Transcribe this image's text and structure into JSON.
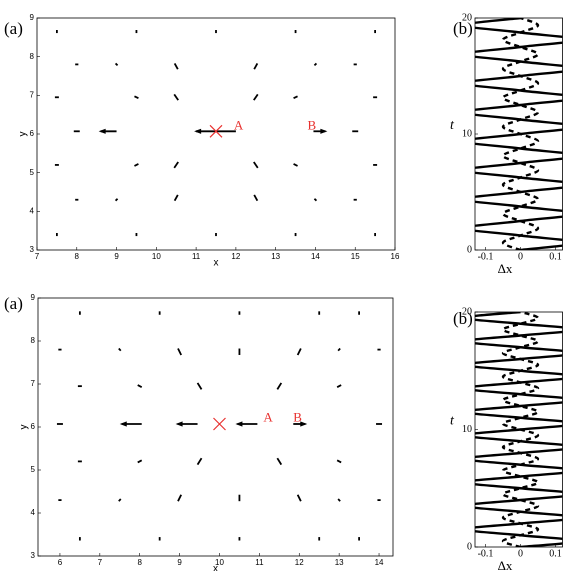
{
  "chart_data": [
    {
      "type": "quiver",
      "label": "(a)",
      "xlabel": "x",
      "ylabel": "y",
      "xlim": [
        7,
        16
      ],
      "ylim": [
        3,
        9
      ],
      "xticks": [
        7,
        8,
        9,
        10,
        11,
        12,
        13,
        14,
        15,
        16
      ],
      "yticks": [
        3,
        4,
        5,
        6,
        7,
        8,
        9
      ],
      "color": "#000000",
      "points": [
        {
          "x": 7.5,
          "y": 8.65,
          "u": 0,
          "v": -0.08
        },
        {
          "x": 9.5,
          "y": 8.65,
          "u": 0,
          "v": -0.08
        },
        {
          "x": 11.5,
          "y": 8.65,
          "u": 0,
          "v": -0.08
        },
        {
          "x": 13.5,
          "y": 8.65,
          "u": 0,
          "v": -0.08
        },
        {
          "x": 15.5,
          "y": 8.65,
          "u": 0,
          "v": -0.08
        },
        {
          "x": 8,
          "y": 7.8,
          "u": 0.08,
          "v": 0
        },
        {
          "x": 9,
          "y": 7.8,
          "u": 0.05,
          "v": -0.05
        },
        {
          "x": 10.5,
          "y": 7.75,
          "u": 0.08,
          "v": -0.15
        },
        {
          "x": 12.5,
          "y": 7.75,
          "u": -0.08,
          "v": -0.15
        },
        {
          "x": 14,
          "y": 7.8,
          "u": -0.05,
          "v": -0.05
        },
        {
          "x": 15,
          "y": 7.8,
          "u": -0.08,
          "v": 0
        },
        {
          "x": 7.5,
          "y": 6.95,
          "u": 0.1,
          "v": 0
        },
        {
          "x": 9.5,
          "y": 6.95,
          "u": 0.1,
          "v": -0.05
        },
        {
          "x": 10.5,
          "y": 6.95,
          "u": 0.1,
          "v": -0.15
        },
        {
          "x": 12.5,
          "y": 6.95,
          "u": -0.1,
          "v": -0.15
        },
        {
          "x": 13.5,
          "y": 6.95,
          "u": -0.1,
          "v": -0.05
        },
        {
          "x": 15.5,
          "y": 6.95,
          "u": -0.1,
          "v": 0
        },
        {
          "x": 8,
          "y": 6.07,
          "u": 0.15,
          "v": 0
        },
        {
          "x": 8.8,
          "y": 6.07,
          "u": -0.4,
          "v": 0
        },
        {
          "x": 11.5,
          "y": 6.07,
          "u": -1,
          "v": 0
        },
        {
          "x": 14.1,
          "y": 6.07,
          "u": 0.3,
          "v": 0
        },
        {
          "x": 15,
          "y": 6.07,
          "u": 0.15,
          "v": 0
        },
        {
          "x": 7.5,
          "y": 5.2,
          "u": 0.1,
          "v": 0
        },
        {
          "x": 9.5,
          "y": 5.2,
          "u": 0.1,
          "v": 0.05
        },
        {
          "x": 10.5,
          "y": 5.2,
          "u": 0.1,
          "v": 0.15
        },
        {
          "x": 12.5,
          "y": 5.2,
          "u": -0.1,
          "v": 0.15
        },
        {
          "x": 13.5,
          "y": 5.2,
          "u": -0.1,
          "v": 0.05
        },
        {
          "x": 15.5,
          "y": 5.2,
          "u": -0.1,
          "v": 0
        },
        {
          "x": 8,
          "y": 4.3,
          "u": 0.08,
          "v": 0
        },
        {
          "x": 9,
          "y": 4.3,
          "u": 0.05,
          "v": 0.05
        },
        {
          "x": 10.5,
          "y": 4.35,
          "u": 0.08,
          "v": 0.15
        },
        {
          "x": 12.5,
          "y": 4.35,
          "u": -0.08,
          "v": 0.15
        },
        {
          "x": 14,
          "y": 4.3,
          "u": -0.05,
          "v": 0.05
        },
        {
          "x": 15,
          "y": 4.3,
          "u": -0.08,
          "v": 0
        },
        {
          "x": 7.5,
          "y": 3.4,
          "u": 0,
          "v": 0.08
        },
        {
          "x": 9.5,
          "y": 3.4,
          "u": 0,
          "v": 0.08
        },
        {
          "x": 11.5,
          "y": 3.4,
          "u": 0,
          "v": 0.08
        },
        {
          "x": 13.5,
          "y": 3.4,
          "u": 0,
          "v": 0.08
        },
        {
          "x": 15.5,
          "y": 3.4,
          "u": 0,
          "v": 0.08
        }
      ],
      "cross": {
        "x": 11.5,
        "y": 6.07,
        "color": "#e8312f"
      },
      "annotations": [
        {
          "text": "A",
          "x": 11.95,
          "y": 6.2
        },
        {
          "text": "B",
          "x": 13.8,
          "y": 6.2
        }
      ]
    },
    {
      "type": "line",
      "label": "(b)",
      "xlabel": "Δx",
      "ylabel": "t",
      "xlim": [
        -0.13,
        0.12
      ],
      "ylim": [
        0,
        20
      ],
      "xticks": [
        -0.1,
        0,
        0.1
      ],
      "yticks": [
        0,
        10,
        20
      ],
      "x": [
        0,
        0.625,
        1.25,
        1.875,
        2.5,
        3.125,
        3.75,
        4.375,
        5,
        5.625,
        6.25,
        6.875,
        7.5,
        8.125,
        8.75,
        9.375,
        10,
        10.625,
        11.25,
        11.875,
        12.5,
        13.125,
        13.75,
        14.375,
        15,
        15.625,
        16.25,
        16.875,
        17.5,
        18.125,
        18.75,
        19.375,
        20
      ],
      "series": [
        {
          "color": "#000000",
          "linestyle": "solid",
          "values": [
            0,
            0.16,
            0,
            -0.16,
            0,
            0.16,
            0,
            -0.16,
            0,
            0.16,
            0,
            -0.16,
            0,
            0.16,
            0,
            -0.16,
            0,
            0.16,
            0,
            -0.16,
            0,
            0.16,
            0,
            -0.16,
            0,
            0.16,
            0,
            -0.16,
            0,
            0.16,
            0,
            -0.16,
            0
          ]
        },
        {
          "color": "#000000",
          "linestyle": "dashed",
          "values": [
            0,
            -0.05,
            0,
            0.05,
            0,
            -0.05,
            0,
            0.05,
            0,
            -0.05,
            0,
            0.05,
            0,
            -0.05,
            0,
            0.05,
            0,
            -0.05,
            0,
            0.05,
            0,
            -0.05,
            0,
            0.05,
            0,
            -0.05,
            0,
            0.05,
            0,
            -0.05,
            0,
            0.05,
            0
          ]
        }
      ]
    },
    {
      "type": "quiver",
      "label": "(a)",
      "xlabel": "x",
      "ylabel": "y",
      "xlim": [
        5.45,
        14.35
      ],
      "ylim": [
        3,
        9
      ],
      "xticks": [
        6,
        7,
        8,
        9,
        10,
        11,
        12,
        13,
        14
      ],
      "yticks": [
        3,
        4,
        5,
        6,
        7,
        8,
        9
      ],
      "color": "#000000",
      "points": [
        {
          "x": 6.5,
          "y": 8.65,
          "u": 0,
          "v": -0.08
        },
        {
          "x": 8.5,
          "y": 8.65,
          "u": 0,
          "v": -0.08
        },
        {
          "x": 10.5,
          "y": 8.65,
          "u": 0,
          "v": -0.08
        },
        {
          "x": 12.5,
          "y": 8.65,
          "u": 0,
          "v": -0.08
        },
        {
          "x": 13.5,
          "y": 8.65,
          "u": 0,
          "v": -0.08
        },
        {
          "x": 6,
          "y": 7.8,
          "u": 0.08,
          "v": 0
        },
        {
          "x": 7.5,
          "y": 7.8,
          "u": 0.05,
          "v": -0.05
        },
        {
          "x": 9,
          "y": 7.75,
          "u": 0.08,
          "v": -0.15
        },
        {
          "x": 10.5,
          "y": 7.75,
          "u": 0,
          "v": -0.15
        },
        {
          "x": 12,
          "y": 7.75,
          "u": -0.08,
          "v": -0.15
        },
        {
          "x": 13,
          "y": 7.8,
          "u": -0.05,
          "v": -0.05
        },
        {
          "x": 14,
          "y": 7.8,
          "u": -0.08,
          "v": 0
        },
        {
          "x": 6.5,
          "y": 6.95,
          "u": 0.1,
          "v": 0
        },
        {
          "x": 8,
          "y": 6.95,
          "u": 0.1,
          "v": -0.05
        },
        {
          "x": 9.5,
          "y": 6.95,
          "u": 0.1,
          "v": -0.15
        },
        {
          "x": 11.5,
          "y": 6.95,
          "u": -0.1,
          "v": -0.15
        },
        {
          "x": 13,
          "y": 6.95,
          "u": -0.1,
          "v": -0.05
        },
        {
          "x": 6,
          "y": 6.07,
          "u": 0.15,
          "v": 0
        },
        {
          "x": 7.8,
          "y": 6.07,
          "u": -0.5,
          "v": 0
        },
        {
          "x": 9.2,
          "y": 6.07,
          "u": -0.5,
          "v": 0
        },
        {
          "x": 10.7,
          "y": 6.07,
          "u": -0.5,
          "v": 0
        },
        {
          "x": 12,
          "y": 6.07,
          "u": 0.3,
          "v": 0
        },
        {
          "x": 14,
          "y": 6.07,
          "u": 0.15,
          "v": 0
        },
        {
          "x": 6.5,
          "y": 5.2,
          "u": 0.1,
          "v": 0
        },
        {
          "x": 8,
          "y": 5.2,
          "u": 0.1,
          "v": 0.05
        },
        {
          "x": 9.5,
          "y": 5.2,
          "u": 0.1,
          "v": 0.15
        },
        {
          "x": 11.5,
          "y": 5.2,
          "u": -0.1,
          "v": 0.15
        },
        {
          "x": 13,
          "y": 5.2,
          "u": -0.1,
          "v": 0.05
        },
        {
          "x": 6,
          "y": 4.3,
          "u": 0.08,
          "v": 0
        },
        {
          "x": 7.5,
          "y": 4.3,
          "u": 0.05,
          "v": 0.05
        },
        {
          "x": 9,
          "y": 4.35,
          "u": 0.08,
          "v": 0.15
        },
        {
          "x": 10.5,
          "y": 4.35,
          "u": 0,
          "v": 0.15
        },
        {
          "x": 12,
          "y": 4.35,
          "u": -0.08,
          "v": 0.15
        },
        {
          "x": 13,
          "y": 4.3,
          "u": -0.05,
          "v": 0.05
        },
        {
          "x": 14,
          "y": 4.3,
          "u": -0.08,
          "v": 0
        },
        {
          "x": 6.5,
          "y": 3.4,
          "u": 0,
          "v": 0.08
        },
        {
          "x": 8.5,
          "y": 3.4,
          "u": 0,
          "v": 0.08
        },
        {
          "x": 10.5,
          "y": 3.4,
          "u": 0,
          "v": 0.08
        },
        {
          "x": 12.5,
          "y": 3.4,
          "u": 0,
          "v": 0.08
        },
        {
          "x": 13.5,
          "y": 3.4,
          "u": 0,
          "v": 0.08
        }
      ],
      "cross": {
        "x": 10,
        "y": 6.07,
        "color": "#e8312f"
      },
      "annotations": [
        {
          "text": "A",
          "x": 11.1,
          "y": 6.2
        },
        {
          "text": "B",
          "x": 11.85,
          "y": 6.2
        }
      ]
    },
    {
      "type": "line",
      "label": "(b)",
      "xlabel": "Δx",
      "ylabel": "t",
      "xlim": [
        -0.13,
        0.12
      ],
      "ylim": [
        0,
        20
      ],
      "xticks": [
        -0.1,
        0,
        0.1
      ],
      "yticks": [
        0,
        10,
        20
      ],
      "x": [
        0,
        0.5,
        1,
        1.5,
        2,
        2.5,
        3,
        3.5,
        4,
        4.5,
        5,
        5.5,
        6,
        6.5,
        7,
        7.5,
        8,
        8.5,
        9,
        9.5,
        10,
        10.5,
        11,
        11.5,
        12,
        12.5,
        13,
        13.5,
        14,
        14.5,
        15,
        15.5,
        16,
        16.5,
        17,
        17.5,
        18,
        18.5,
        19,
        19.5,
        20
      ],
      "series": [
        {
          "color": "#000000",
          "linestyle": "solid",
          "values": [
            0,
            0.16,
            0,
            -0.16,
            0,
            0.16,
            0,
            -0.16,
            0,
            0.16,
            0,
            -0.16,
            0,
            0.16,
            0,
            -0.16,
            0,
            0.16,
            0,
            -0.16,
            0,
            0.16,
            0,
            -0.16,
            0,
            0.16,
            0,
            -0.16,
            0,
            0.16,
            0,
            -0.16,
            0,
            0.16,
            0,
            -0.16,
            0,
            0.16,
            0,
            -0.16,
            0
          ]
        },
        {
          "color": "#000000",
          "linestyle": "dashed",
          "values": [
            0,
            -0.05,
            0,
            0.05,
            0,
            -0.05,
            0,
            0.05,
            0,
            -0.05,
            0,
            0.05,
            0,
            -0.05,
            0,
            0.05,
            0,
            -0.05,
            0,
            0.05,
            0,
            -0.05,
            0,
            0.05,
            0,
            -0.05,
            0,
            0.05,
            0,
            -0.05,
            0,
            0.05,
            0,
            -0.05,
            0,
            0.05,
            0,
            -0.05,
            0,
            0.05,
            0
          ]
        }
      ]
    }
  ]
}
